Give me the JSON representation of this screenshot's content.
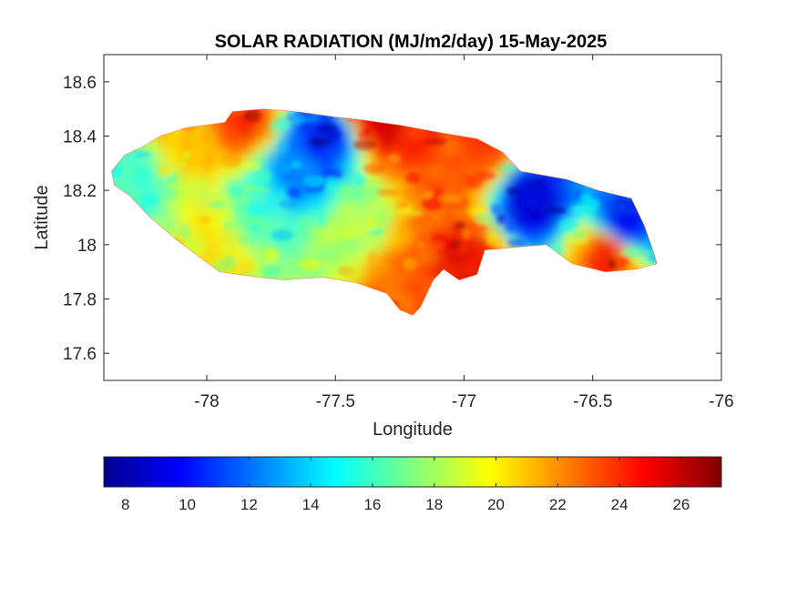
{
  "chart_data": {
    "type": "heatmap",
    "title": "SOLAR RADIATION (MJ/m2/day) 15-May-2025",
    "xlabel": "Longitude",
    "ylabel": "Latitude",
    "xlim": [
      -78.4,
      -76
    ],
    "ylim": [
      17.5,
      18.7
    ],
    "xticks": [
      -78,
      -77.5,
      -77,
      -76.5,
      -76
    ],
    "yticks": [
      17.6,
      17.8,
      18,
      18.2,
      18.4,
      18.6
    ],
    "colormap": "jet",
    "clim": [
      7.3,
      27.3
    ],
    "colorbar_ticks": [
      8,
      10,
      12,
      14,
      16,
      18,
      20,
      22,
      24,
      26
    ],
    "colorbar_location": "bottom",
    "outline_lonlat": [
      [
        -78.37,
        18.27
      ],
      [
        -78.32,
        18.33
      ],
      [
        -78.25,
        18.36
      ],
      [
        -78.18,
        18.4
      ],
      [
        -78.08,
        18.43
      ],
      [
        -77.93,
        18.45
      ],
      [
        -77.9,
        18.49
      ],
      [
        -77.78,
        18.5
      ],
      [
        -77.65,
        18.49
      ],
      [
        -77.5,
        18.47
      ],
      [
        -77.4,
        18.46
      ],
      [
        -77.25,
        18.44
      ],
      [
        -77.08,
        18.41
      ],
      [
        -76.95,
        18.39
      ],
      [
        -76.85,
        18.34
      ],
      [
        -76.78,
        18.27
      ],
      [
        -76.6,
        18.24
      ],
      [
        -76.48,
        18.2
      ],
      [
        -76.35,
        18.17
      ],
      [
        -76.3,
        18.07
      ],
      [
        -76.27,
        17.99
      ],
      [
        -76.25,
        17.93
      ],
      [
        -76.33,
        17.91
      ],
      [
        -76.45,
        17.9
      ],
      [
        -76.58,
        17.93
      ],
      [
        -76.68,
        18.0
      ],
      [
        -76.8,
        17.99
      ],
      [
        -76.92,
        17.98
      ],
      [
        -76.95,
        17.89
      ],
      [
        -77.02,
        17.87
      ],
      [
        -77.08,
        17.91
      ],
      [
        -77.12,
        17.87
      ],
      [
        -77.17,
        17.77
      ],
      [
        -77.2,
        17.74
      ],
      [
        -77.25,
        17.76
      ],
      [
        -77.3,
        17.82
      ],
      [
        -77.42,
        17.86
      ],
      [
        -77.55,
        17.88
      ],
      [
        -77.7,
        17.87
      ],
      [
        -77.8,
        17.88
      ],
      [
        -77.95,
        17.9
      ],
      [
        -78.05,
        17.97
      ],
      [
        -78.12,
        18.02
      ],
      [
        -78.22,
        18.1
      ],
      [
        -78.3,
        18.18
      ],
      [
        -78.36,
        18.22
      ],
      [
        -78.37,
        18.27
      ]
    ],
    "field_samples": [
      {
        "lon": -78.3,
        "lat": 18.25,
        "value": 16
      },
      {
        "lon": -78.1,
        "lat": 18.38,
        "value": 21
      },
      {
        "lon": -77.88,
        "lat": 18.45,
        "value": 24
      },
      {
        "lon": -77.55,
        "lat": 18.38,
        "value": 10
      },
      {
        "lon": -77.35,
        "lat": 18.46,
        "value": 26
      },
      {
        "lon": -77.15,
        "lat": 18.4,
        "value": 24
      },
      {
        "lon": -77.05,
        "lat": 18.3,
        "value": 23
      },
      {
        "lon": -76.95,
        "lat": 18.35,
        "value": 24
      },
      {
        "lon": -76.75,
        "lat": 18.15,
        "value": 9
      },
      {
        "lon": -76.4,
        "lat": 18.05,
        "value": 9
      },
      {
        "lon": -76.45,
        "lat": 17.97,
        "value": 25
      },
      {
        "lon": -77.25,
        "lat": 17.85,
        "value": 23
      },
      {
        "lon": -77.0,
        "lat": 17.92,
        "value": 25
      },
      {
        "lon": -77.65,
        "lat": 18.25,
        "value": 12
      },
      {
        "lon": -77.8,
        "lat": 18.1,
        "value": 16
      },
      {
        "lon": -77.45,
        "lat": 18.05,
        "value": 18
      },
      {
        "lon": -77.95,
        "lat": 17.98,
        "value": 20
      }
    ]
  }
}
